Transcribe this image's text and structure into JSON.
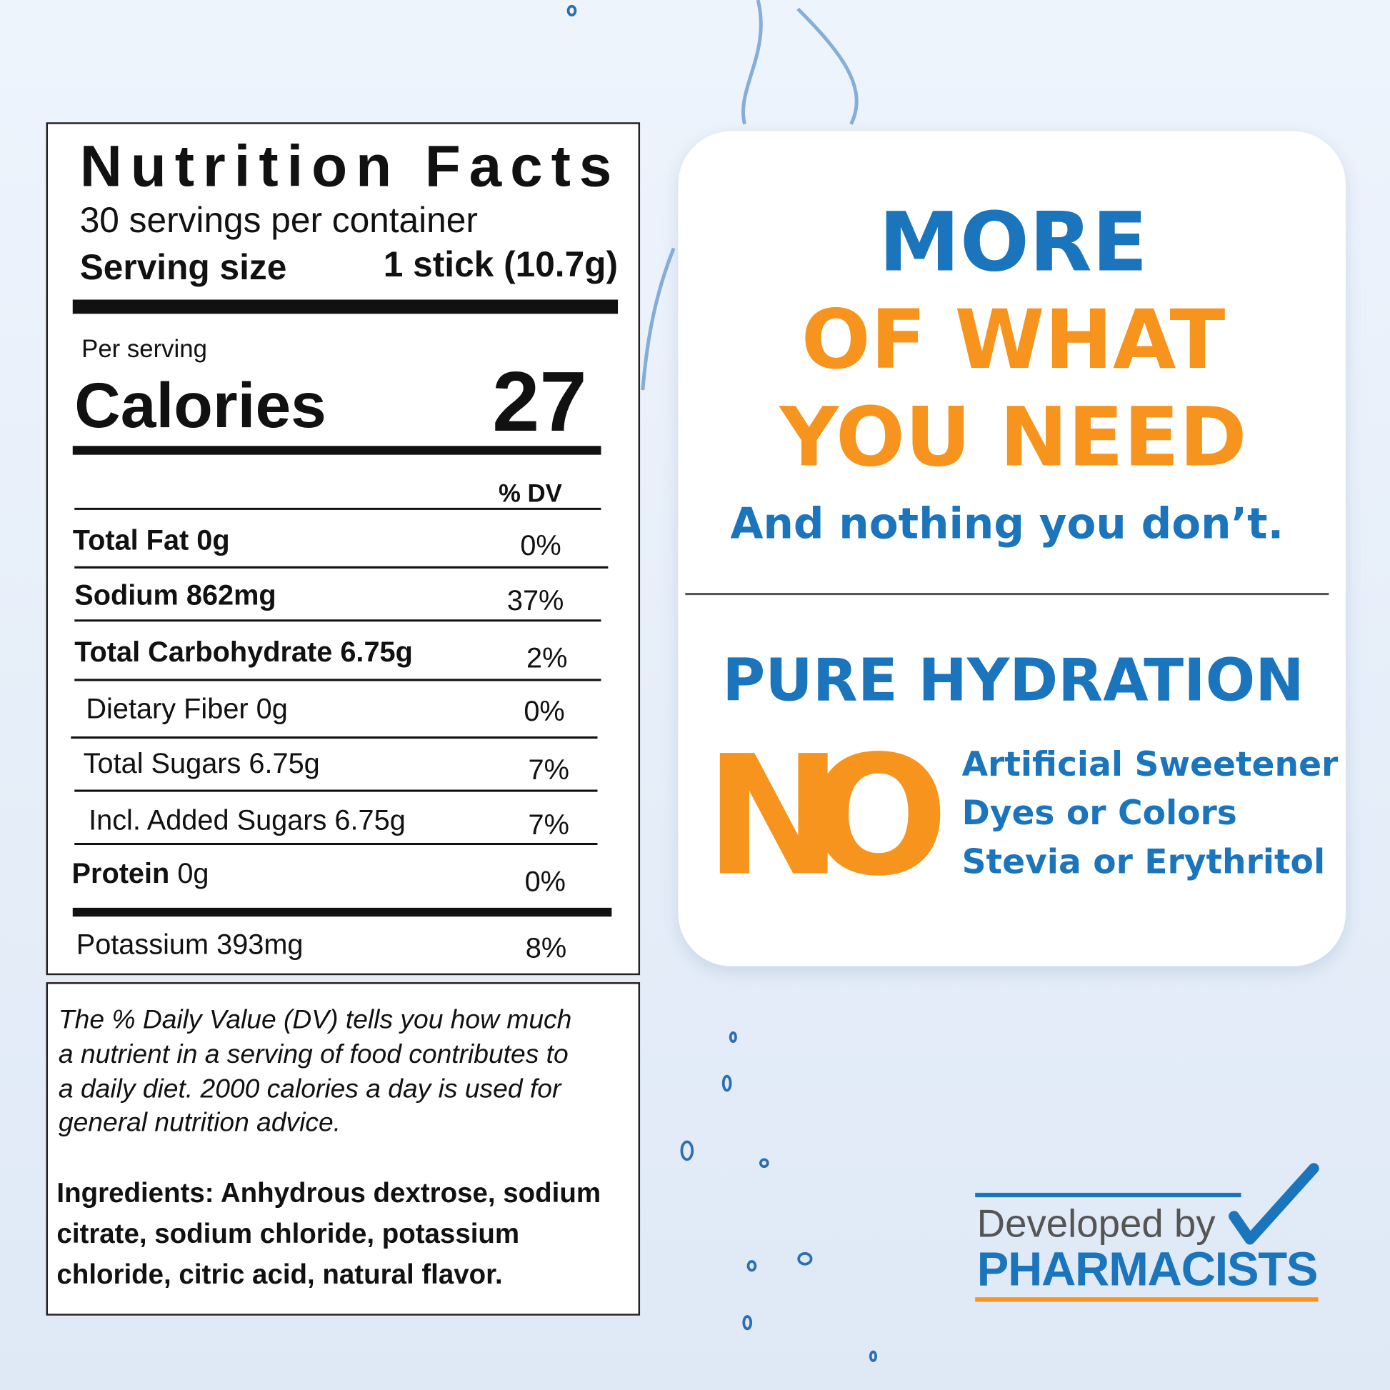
{
  "nutrition": {
    "title": "Nutrition Facts",
    "servings": "30 servings per container",
    "serving_size_label": "Serving size",
    "serving_size_value": "1 stick (10.7g)",
    "per_serving": "Per serving",
    "calories_label": "Calories",
    "calories_value": "27",
    "dv_header": "% DV",
    "rows": [
      {
        "name": "Total Fat",
        "amount": "0g",
        "dv": "0%"
      },
      {
        "name": "Sodium",
        "amount": "862mg",
        "dv": "37%"
      },
      {
        "name": "Total Carbohydrate",
        "amount": "6.75g",
        "dv": "2%"
      },
      {
        "name": "Dietary Fiber",
        "amount": "0g",
        "dv": "0%"
      },
      {
        "name": "Total Sugars",
        "amount": "6.75g",
        "dv": "7%"
      },
      {
        "name": "Incl. Added Sugars",
        "amount": "6.75g",
        "dv": "7%"
      },
      {
        "name": "Protein",
        "amount": "0g",
        "dv": "0%"
      },
      {
        "name": "Potassium",
        "amount": "393mg",
        "dv": "8%"
      }
    ]
  },
  "dv_note": [
    "The % Daily Value (DV) tells you how much",
    "a nutrient in a serving of food contributes to",
    "a daily diet. 2000 calories a day is used for",
    "general nutrition advice."
  ],
  "ingredients": [
    "Ingredients: Anhydrous dextrose, sodium",
    "citrate, sodium chloride, potassium",
    "chloride, citric acid, natural flavor."
  ],
  "promo": {
    "headline": [
      "MORE",
      "OF WHAT",
      "YOU NEED"
    ],
    "tagline": "And nothing you don’t.",
    "subhead": "PURE HYDRATION",
    "no": "NO",
    "no_items": [
      "Artificial Sweetener",
      "Dyes or Colors",
      "Stevia or Erythritol"
    ]
  },
  "badge": {
    "line1": "Developed by",
    "line2": "PHARMACISTS"
  }
}
